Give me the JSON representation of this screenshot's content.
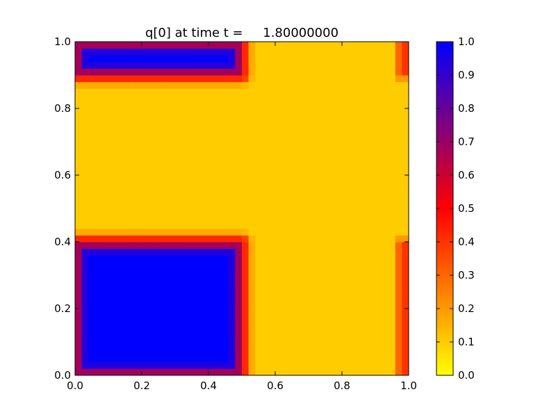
{
  "chart_data": {
    "type": "heatmap",
    "title": "q[0] at time t =     1.80000000",
    "xlabel": "",
    "ylabel": "",
    "xlim": [
      0.0,
      1.0
    ],
    "ylim": [
      0.0,
      1.0
    ],
    "x_ticks": [
      "0.0",
      "0.2",
      "0.4",
      "0.6",
      "0.8",
      "1.0"
    ],
    "y_ticks": [
      "0.0",
      "0.2",
      "0.4",
      "0.6",
      "0.8",
      "1.0"
    ],
    "grid": false,
    "colormap": {
      "name": "yellow-red-blue",
      "range": [
        0.0,
        1.0
      ],
      "stops": [
        {
          "value": 0.0,
          "color": "#ffff00"
        },
        {
          "value": 0.5,
          "color": "#ff0000"
        },
        {
          "value": 1.0,
          "color": "#0000ff"
        }
      ],
      "ticks": [
        "0.0",
        "0.1",
        "0.2",
        "0.3",
        "0.4",
        "0.5",
        "0.6",
        "0.7",
        "0.8",
        "0.9",
        "1.0"
      ]
    },
    "grid_resolution": [
      50,
      50
    ],
    "background_value": 0.1,
    "features": [
      {
        "name": "bottom-left square",
        "x_range": [
          0.0,
          0.5
        ],
        "y_range": [
          0.0,
          0.4
        ],
        "peak_value": 1.0,
        "edge_width": 0.07
      },
      {
        "name": "top-left strip",
        "x_range": [
          0.0,
          0.5
        ],
        "y_range": [
          0.9,
          1.0
        ],
        "peak_value": 1.0,
        "edge_width": 0.07
      },
      {
        "name": "right-bottom edge",
        "x_range": [
          0.97,
          1.0
        ],
        "y_range": [
          0.0,
          0.4
        ],
        "peak_value": 0.5,
        "edge_width": 0.04
      },
      {
        "name": "right-top edge",
        "x_range": [
          0.97,
          1.0
        ],
        "y_range": [
          0.9,
          1.0
        ],
        "peak_value": 0.5,
        "edge_width": 0.04
      }
    ]
  }
}
